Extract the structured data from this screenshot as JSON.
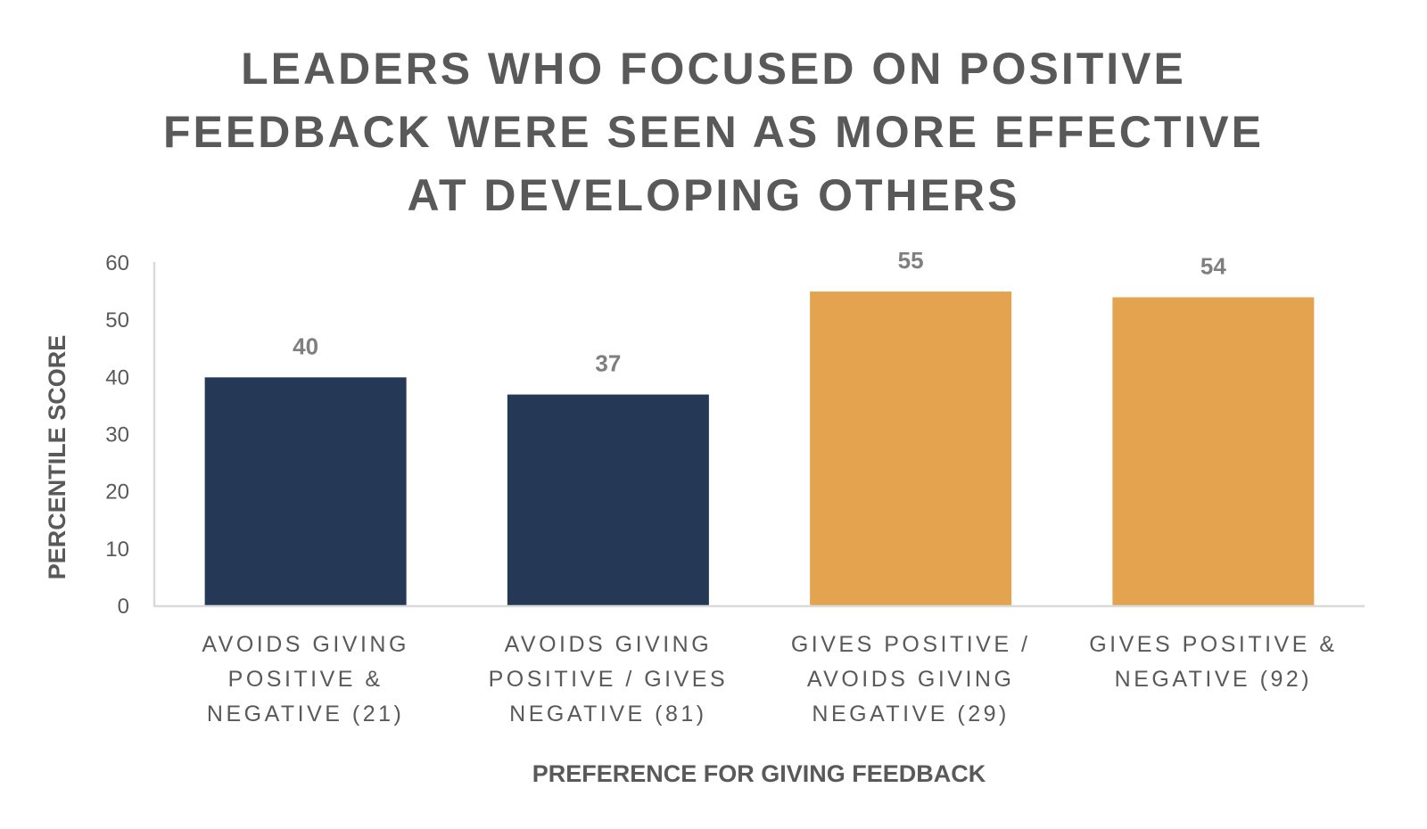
{
  "chart_data": {
    "type": "bar",
    "title_lines": [
      "LEADERS WHO FOCUSED ON POSITIVE",
      "FEEDBACK WERE SEEN AS MORE EFFECTIVE",
      "AT DEVELOPING OTHERS"
    ],
    "categories": [
      [
        "AVOIDS GIVING",
        "POSITIVE &",
        "NEGATIVE (21)"
      ],
      [
        "AVOIDS GIVING",
        "POSITIVE / GIVES",
        "NEGATIVE (81)"
      ],
      [
        "GIVES POSITIVE /",
        "AVOIDS GIVING",
        "NEGATIVE (29)"
      ],
      [
        "GIVES POSITIVE &",
        "NEGATIVE (92)"
      ]
    ],
    "values": [
      40,
      37,
      55,
      54
    ],
    "data_labels": [
      "40",
      "37",
      "55",
      "54"
    ],
    "bar_colors": [
      "#253956",
      "#253956",
      "#E3A34F",
      "#E3A34F"
    ],
    "xlabel": "PREFERENCE FOR GIVING FEEDBACK",
    "ylabel": "PERCENTILE SCORE",
    "ylim": [
      0,
      60
    ],
    "yticks": [
      "0",
      "10",
      "20",
      "30",
      "40",
      "50",
      "60"
    ],
    "grid": false,
    "legend": "none"
  }
}
